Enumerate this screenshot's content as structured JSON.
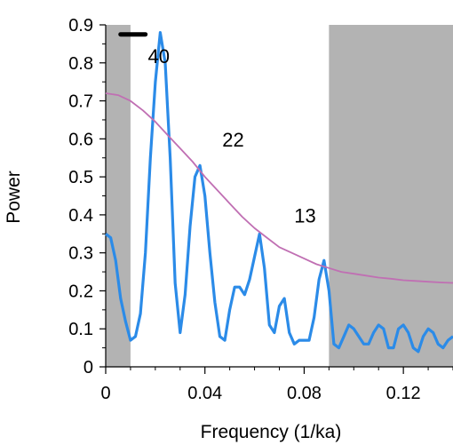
{
  "chart_data": {
    "type": "line",
    "xlabel": "Frequency (1/ka)",
    "ylabel": "Power",
    "xlim": [
      0,
      0.14
    ],
    "ylim": [
      0,
      0.9
    ],
    "x_ticks": [
      0,
      0.04,
      0.08,
      0.12
    ],
    "x_tick_labels": [
      "0",
      "0.04",
      "0.08",
      "0.12"
    ],
    "y_ticks": [
      0,
      0.1,
      0.2,
      0.3,
      0.4,
      0.5,
      0.6,
      0.7,
      0.8,
      0.9
    ],
    "y_tick_labels": [
      "0",
      "0.1",
      "0.2",
      "0.3",
      "0.4",
      "0.5",
      "0.6",
      "0.7",
      "0.8",
      "0.9"
    ],
    "shaded_regions": [
      {
        "x0": 0,
        "x1": 0.01,
        "color": "#b3b3b3"
      },
      {
        "x0": 0.09,
        "x1": 0.14,
        "color": "#b3b3b3"
      }
    ],
    "series": [
      {
        "color": "#2b8be8",
        "x": [
          0,
          0.002,
          0.004,
          0.006,
          0.008,
          0.01,
          0.012,
          0.014,
          0.016,
          0.018,
          0.02,
          0.022,
          0.024,
          0.026,
          0.028,
          0.03,
          0.032,
          0.034,
          0.036,
          0.038,
          0.04,
          0.042,
          0.044,
          0.046,
          0.048,
          0.05,
          0.052,
          0.054,
          0.056,
          0.058,
          0.06,
          0.062,
          0.064,
          0.066,
          0.068,
          0.07,
          0.072,
          0.074,
          0.076,
          0.078,
          0.08,
          0.082,
          0.084,
          0.086,
          0.088,
          0.09,
          0.092,
          0.094,
          0.096,
          0.098,
          0.1,
          0.102,
          0.104,
          0.106,
          0.108,
          0.11,
          0.112,
          0.114,
          0.116,
          0.118,
          0.12,
          0.122,
          0.124,
          0.126,
          0.128,
          0.13,
          0.132,
          0.134,
          0.136,
          0.138,
          0.14
        ],
        "y": [
          0.35,
          0.34,
          0.28,
          0.18,
          0.12,
          0.07,
          0.08,
          0.14,
          0.3,
          0.55,
          0.75,
          0.88,
          0.8,
          0.55,
          0.22,
          0.09,
          0.19,
          0.37,
          0.5,
          0.53,
          0.45,
          0.3,
          0.17,
          0.08,
          0.07,
          0.15,
          0.21,
          0.21,
          0.19,
          0.23,
          0.29,
          0.35,
          0.26,
          0.11,
          0.09,
          0.16,
          0.18,
          0.09,
          0.06,
          0.07,
          0.07,
          0.07,
          0.13,
          0.23,
          0.28,
          0.2,
          0.06,
          0.05,
          0.08,
          0.11,
          0.1,
          0.08,
          0.06,
          0.06,
          0.09,
          0.11,
          0.1,
          0.05,
          0.05,
          0.1,
          0.11,
          0.09,
          0.05,
          0.04,
          0.08,
          0.1,
          0.09,
          0.06,
          0.05,
          0.07,
          0.08
        ]
      },
      {
        "color": "#c06fb3",
        "x": [
          0,
          0.005,
          0.01,
          0.015,
          0.02,
          0.025,
          0.03,
          0.035,
          0.04,
          0.045,
          0.05,
          0.055,
          0.06,
          0.065,
          0.07,
          0.075,
          0.08,
          0.085,
          0.09,
          0.095,
          0.1,
          0.105,
          0.11,
          0.115,
          0.12,
          0.125,
          0.13,
          0.135,
          0.14
        ],
        "y": [
          0.72,
          0.715,
          0.7,
          0.675,
          0.645,
          0.61,
          0.575,
          0.54,
          0.5,
          0.465,
          0.43,
          0.395,
          0.365,
          0.34,
          0.315,
          0.3,
          0.285,
          0.27,
          0.26,
          0.25,
          0.245,
          0.24,
          0.235,
          0.232,
          0.228,
          0.226,
          0.224,
          0.222,
          0.221
        ]
      }
    ],
    "annotations": [
      {
        "text": "40",
        "x": 0.017,
        "y": 0.8
      },
      {
        "text": "22",
        "x": 0.047,
        "y": 0.58
      },
      {
        "text": "13",
        "x": 0.076,
        "y": 0.38
      }
    ],
    "scale_bar": {
      "x0": 0.006,
      "x1": 0.016,
      "y": 0.875,
      "color": "#000000"
    }
  }
}
